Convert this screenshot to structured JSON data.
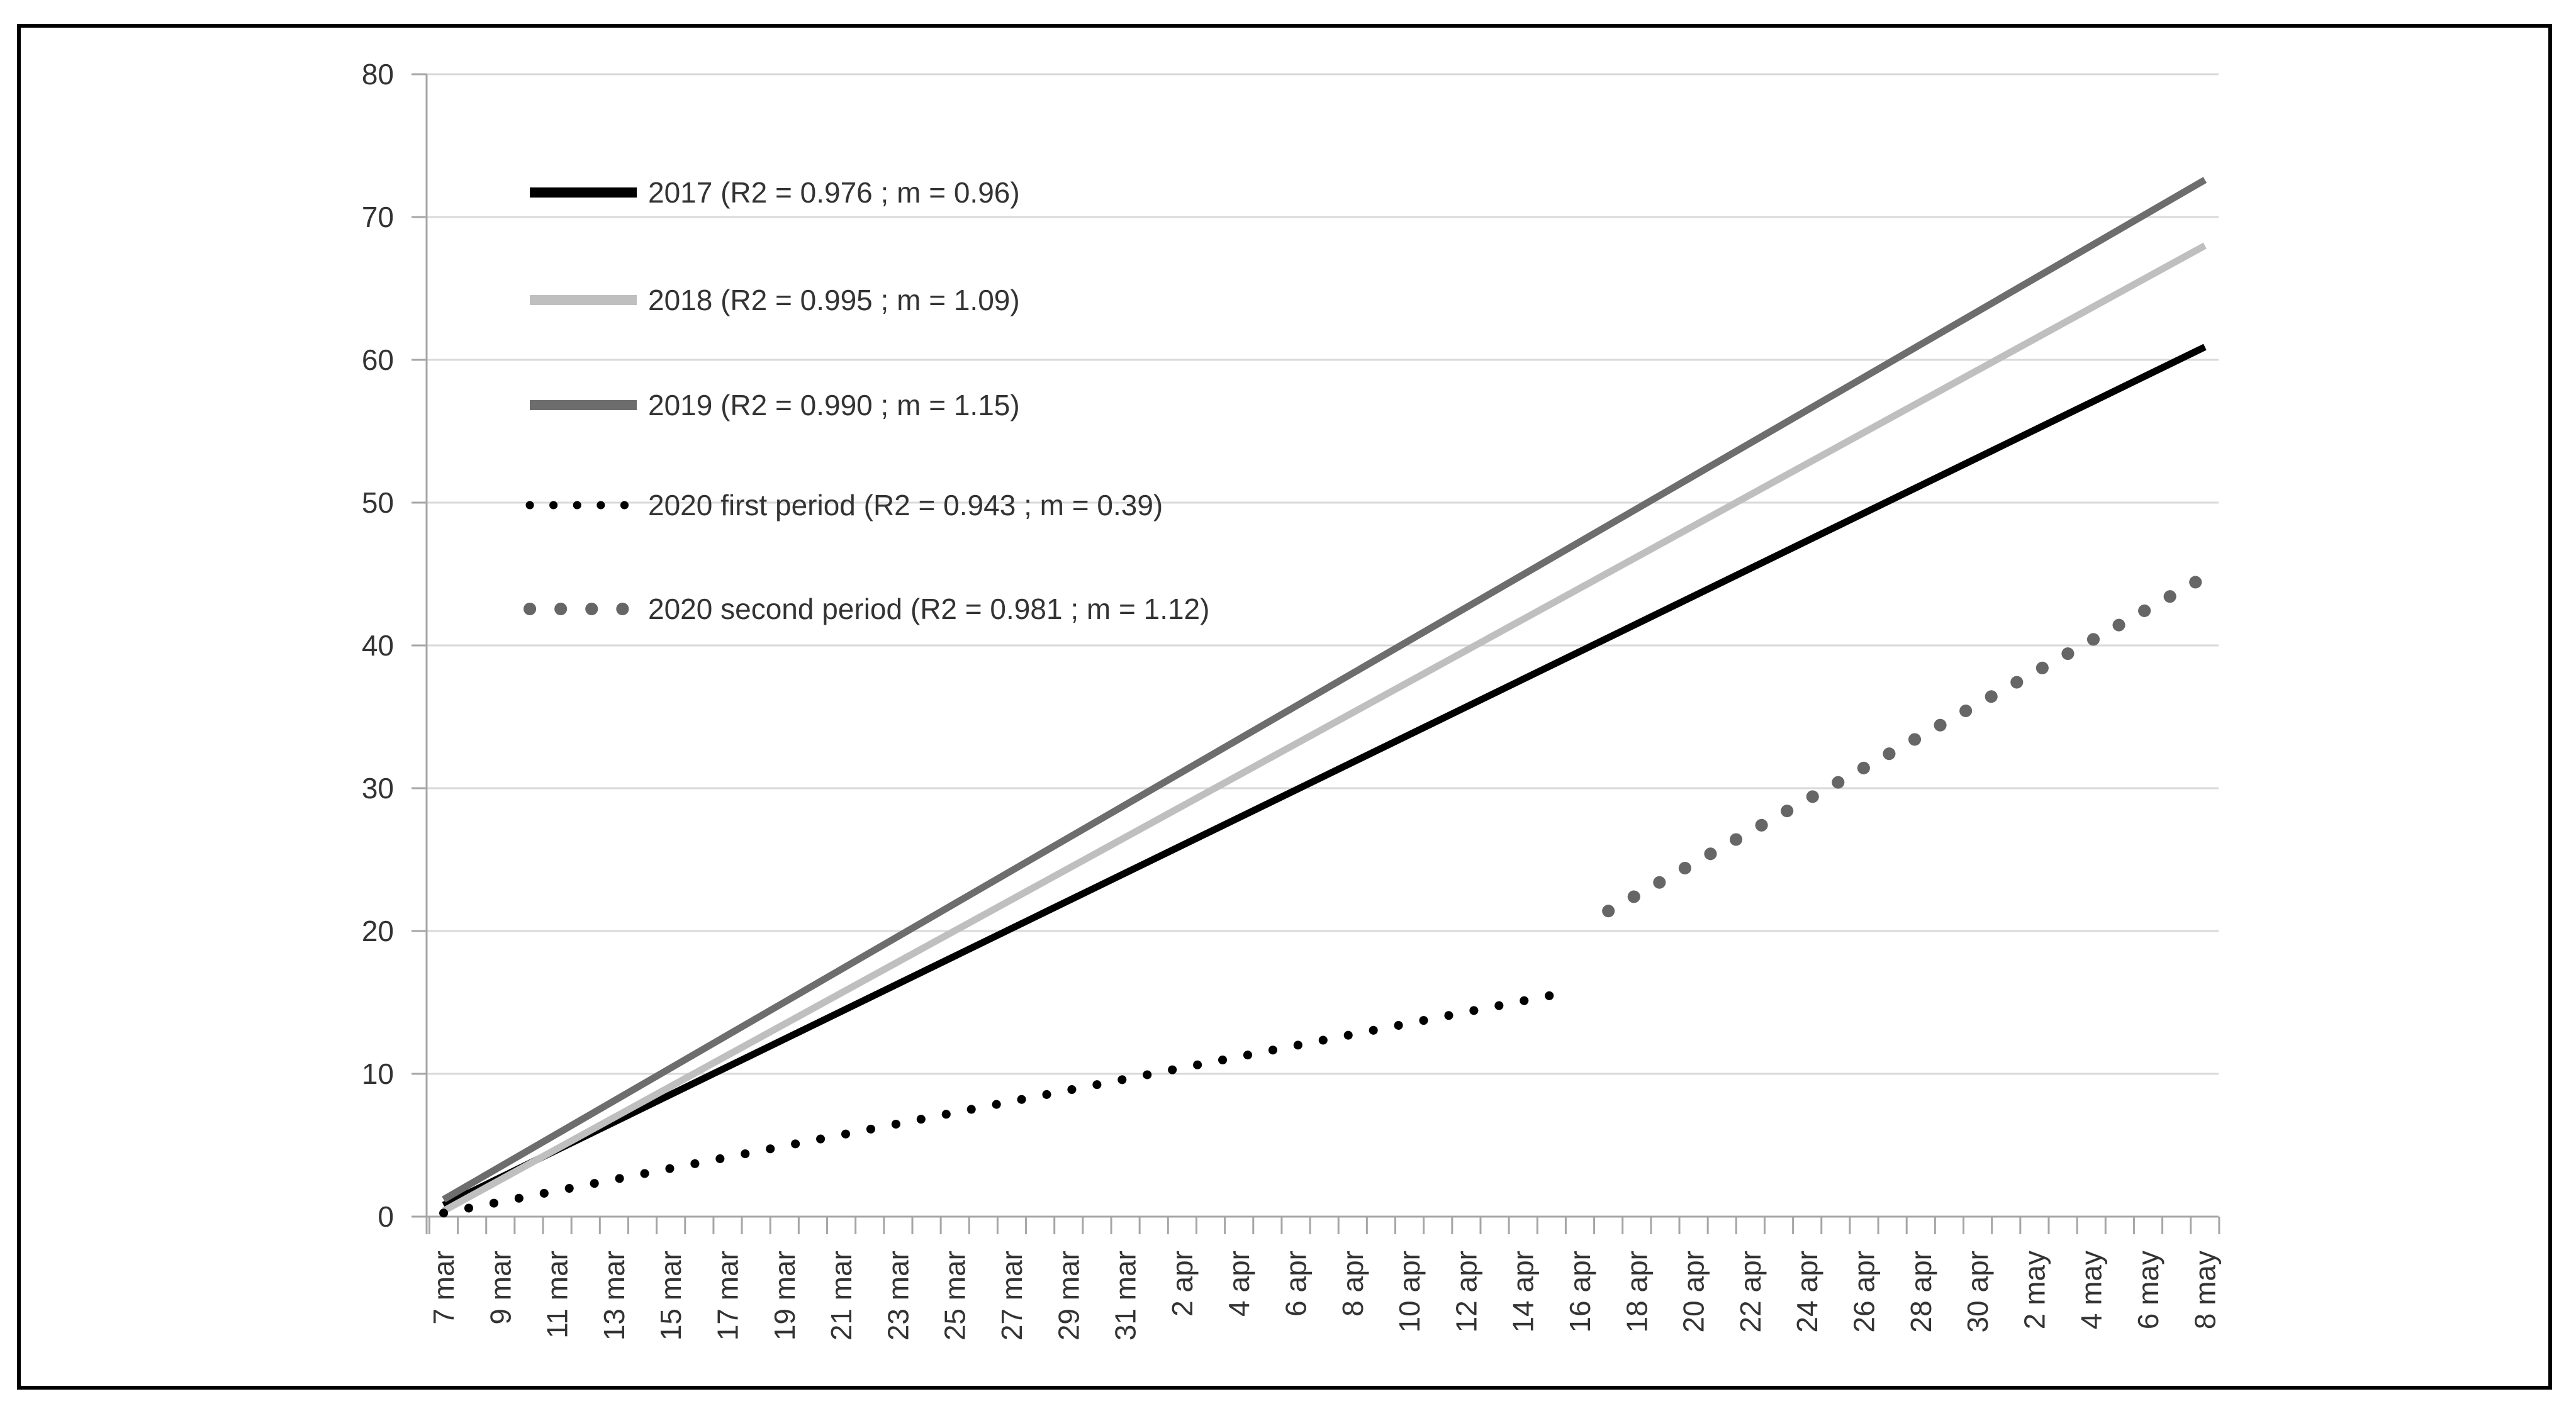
{
  "figure": {
    "kind": "statistical line chart (cumulative linear regressions by year)",
    "background": "#ffffff",
    "border_color": "#000000"
  },
  "colors": {
    "black": "#000000",
    "light_gray": "#bfbfbf",
    "dark_gray": "#6d6d6d",
    "dot_gray": "#666666",
    "gridline": "#d9d9d9",
    "axis": "#a6a6a6",
    "text": "#333333"
  },
  "chart_data": {
    "type": "line",
    "title": "",
    "xlabel": "",
    "ylabel": "",
    "grid": "horizontal-only",
    "legend_position": "inside-top-left",
    "y_axis": {
      "min": 0,
      "max": 80,
      "step": 10,
      "tick_labels": [
        "0",
        "10",
        "20",
        "30",
        "40",
        "50",
        "60",
        "70",
        "80"
      ]
    },
    "x_axis": {
      "unit": "date",
      "minor_ticks": "daily",
      "label_every_days": 2,
      "total_days": 62,
      "labels": [
        "7 mar",
        "9 mar",
        "11 mar",
        "13 mar",
        "15 mar",
        "17 mar",
        "19 mar",
        "21 mar",
        "23 mar",
        "25 mar",
        "27 mar",
        "29 mar",
        "31 mar",
        "2 apr",
        "4 apr",
        "6 apr",
        "8 apr",
        "10 apr",
        "12 apr",
        "14 apr",
        "16 apr",
        "18 apr",
        "20 apr",
        "22 apr",
        "24 apr",
        "26 apr",
        "28 apr",
        "30 apr",
        "2 may",
        "4 may",
        "6 may",
        "8 may"
      ]
    },
    "series": [
      {
        "name": "2017",
        "legend_label": "2017 (R2 = 0.976 ; m = 0.96)",
        "r2": 0.976,
        "slope_per_day": 0.96,
        "color": "#000000",
        "line_style": "solid",
        "line_width": 11,
        "points": [
          {
            "date": "7 mar",
            "day": 0,
            "value": 0.8
          },
          {
            "date": "8 may",
            "day": 62,
            "value": 60.9
          }
        ]
      },
      {
        "name": "2018",
        "legend_label": "2018 (R2 = 0.995 ; m = 1.09)",
        "r2": 0.995,
        "slope_per_day": 1.09,
        "color": "#bfbfbf",
        "line_style": "solid",
        "line_width": 11,
        "points": [
          {
            "date": "7 mar",
            "day": 0,
            "value": 0.4
          },
          {
            "date": "8 may",
            "day": 62,
            "value": 68.0
          }
        ]
      },
      {
        "name": "2019",
        "legend_label": "2019 (R2 = 0.990 ; m = 1.15)",
        "r2": 0.99,
        "slope_per_day": 1.15,
        "color": "#6d6d6d",
        "line_style": "solid",
        "line_width": 11,
        "points": [
          {
            "date": "7 mar",
            "day": 0,
            "value": 1.2
          },
          {
            "date": "8 may",
            "day": 62,
            "value": 72.6
          }
        ]
      },
      {
        "name": "2020 first period",
        "legend_label": "2020 first period (R2 = 0.943 ; m = 0.39)",
        "r2": 0.943,
        "slope_per_day": 0.39,
        "color": "#000000",
        "line_style": "dotted",
        "line_width": 14,
        "dot_gap": 40.6,
        "points": [
          {
            "date": "7 mar",
            "day": 0,
            "value": 0.25
          },
          {
            "date": "15 apr",
            "day": 39,
            "value": 15.5
          }
        ]
      },
      {
        "name": "2020 second period",
        "legend_label": "2020 second period (R2 = 0.981 ; m = 1.12)",
        "r2": 0.981,
        "slope_per_day": 1.12,
        "color": "#666666",
        "line_style": "dotted",
        "line_width": 20,
        "dot_gap": 46.4,
        "points": [
          {
            "date": "17 apr",
            "day": 41,
            "value": 21.4
          },
          {
            "date": "8 may",
            "day": 62,
            "value": 44.8
          }
        ]
      }
    ]
  }
}
